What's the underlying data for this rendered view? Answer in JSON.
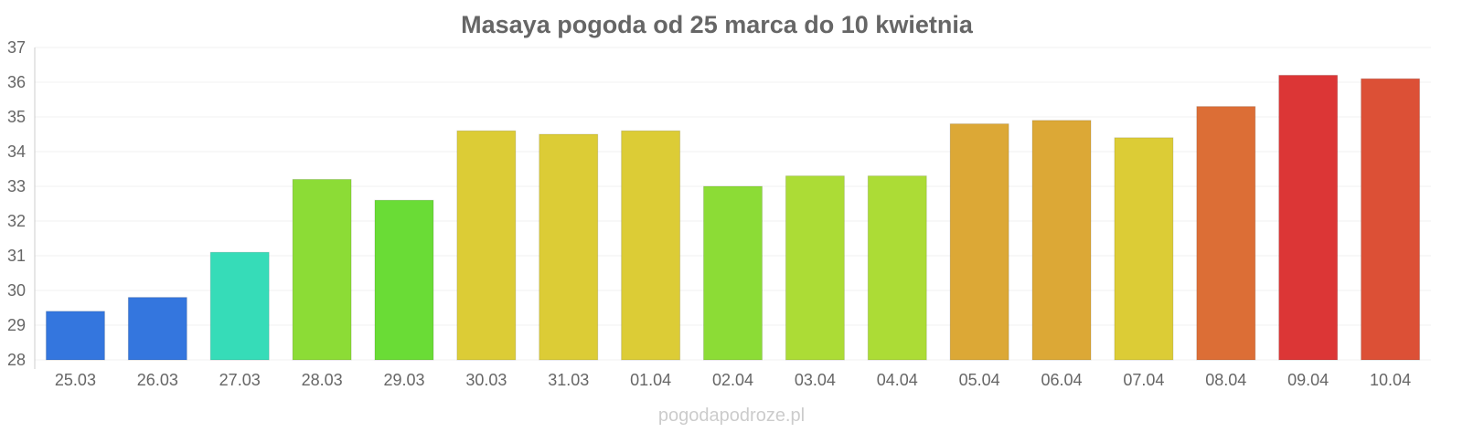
{
  "chart_data": {
    "type": "bar",
    "title": "Masaya pogoda od 25 marca do 10 kwietnia",
    "xlabel": "",
    "ylabel": "",
    "ylim": [
      28,
      37
    ],
    "yticks": [
      28,
      29,
      30,
      31,
      32,
      33,
      34,
      35,
      36,
      37
    ],
    "grid": true,
    "categories": [
      "25.03",
      "26.03",
      "27.03",
      "28.03",
      "29.03",
      "30.03",
      "31.03",
      "01.04",
      "02.04",
      "03.04",
      "04.04",
      "05.04",
      "06.04",
      "07.04",
      "08.04",
      "09.04",
      "10.04"
    ],
    "values": [
      29.4,
      29.8,
      31.1,
      33.2,
      32.6,
      34.6,
      34.5,
      34.6,
      33.0,
      33.3,
      33.3,
      34.8,
      34.9,
      34.4,
      35.3,
      36.2,
      36.1
    ],
    "colors": [
      "#3476de",
      "#3476de",
      "#36dcb8",
      "#8cdc36",
      "#6adc36",
      "#dccc36",
      "#dccc36",
      "#dccc36",
      "#8cdc36",
      "#acdc36",
      "#acdc36",
      "#dca836",
      "#dca836",
      "#dccc36",
      "#dc6e36",
      "#dc3636",
      "#dc5036"
    ]
  },
  "footer": "pogodapodroze.pl"
}
